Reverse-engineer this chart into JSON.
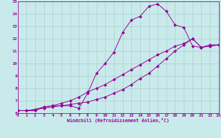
{
  "xlabel": "Windchill (Refroidissement éolien,°C)",
  "bg_color": "#c8eaea",
  "line_color": "#990099",
  "grid_color": "#aacccc",
  "xmin": 0,
  "xmax": 23,
  "ymin": 6,
  "ymax": 15,
  "line1_x": [
    0,
    1,
    2,
    3,
    4,
    5,
    6,
    7,
    8,
    9,
    10,
    11,
    12,
    13,
    14,
    15,
    16,
    17,
    18,
    19,
    20,
    21,
    22,
    23
  ],
  "line1_y": [
    6.2,
    6.2,
    6.2,
    6.5,
    6.6,
    6.6,
    6.6,
    6.4,
    7.6,
    9.2,
    10.0,
    10.9,
    12.5,
    13.5,
    13.8,
    14.6,
    14.8,
    14.2,
    13.1,
    12.9,
    11.4,
    11.3,
    11.5,
    11.5
  ],
  "line2_x": [
    0,
    1,
    2,
    3,
    4,
    5,
    6,
    7,
    8,
    9,
    10,
    11,
    12,
    13,
    14,
    15,
    16,
    17,
    18,
    19,
    20,
    21,
    22,
    23
  ],
  "line2_y": [
    6.2,
    6.2,
    6.3,
    6.5,
    6.6,
    6.8,
    7.0,
    7.3,
    7.7,
    8.0,
    8.3,
    8.7,
    9.1,
    9.5,
    9.9,
    10.3,
    10.7,
    11.0,
    11.4,
    11.6,
    12.0,
    11.3,
    11.4,
    11.5
  ],
  "line3_x": [
    0,
    1,
    2,
    3,
    4,
    5,
    6,
    7,
    8,
    9,
    10,
    11,
    12,
    13,
    14,
    15,
    16,
    17,
    18,
    19,
    20,
    21,
    22,
    23
  ],
  "line3_y": [
    6.2,
    6.2,
    6.3,
    6.4,
    6.5,
    6.6,
    6.7,
    6.8,
    6.9,
    7.1,
    7.3,
    7.6,
    7.9,
    8.3,
    8.8,
    9.2,
    9.8,
    10.4,
    11.0,
    11.5,
    12.0,
    11.3,
    11.4,
    11.5
  ]
}
